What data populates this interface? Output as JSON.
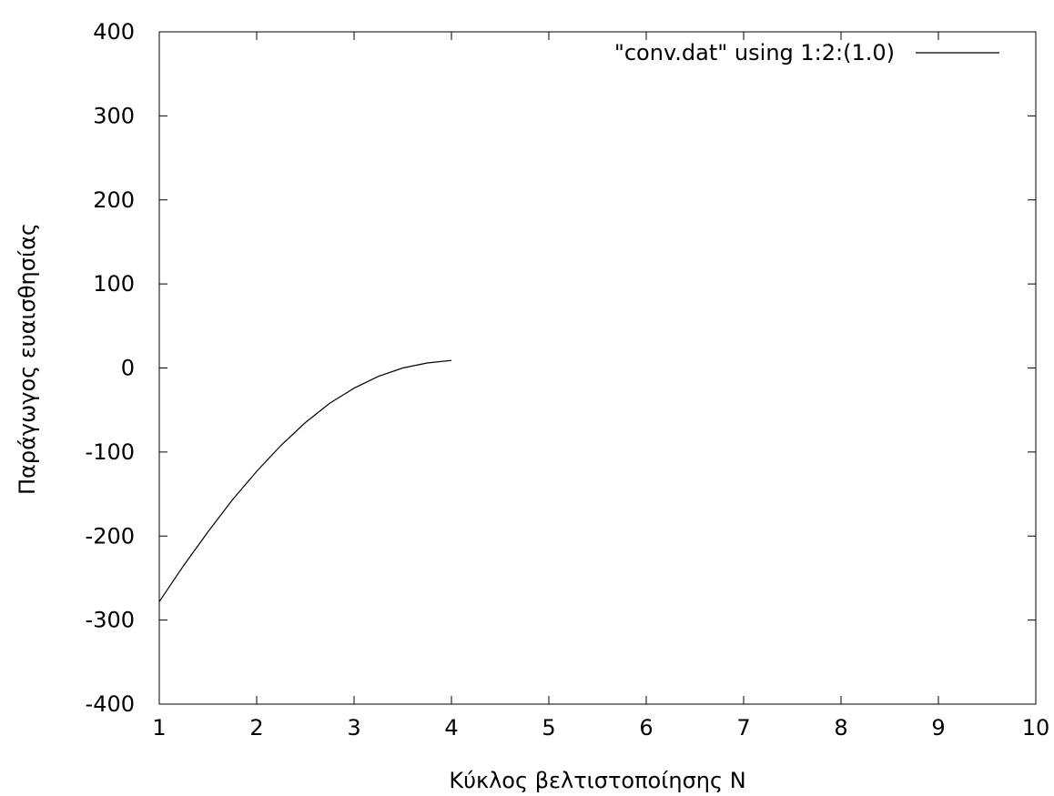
{
  "chart_data": {
    "type": "line",
    "title": "",
    "xlabel": "Κύκλος βελτιστοποίησης N",
    "ylabel": "Παράγωγος ευαισθησίας",
    "xlim": [
      1,
      10
    ],
    "ylim": [
      -400,
      400
    ],
    "xticks": [
      1,
      2,
      3,
      4,
      5,
      6,
      7,
      8,
      9,
      10
    ],
    "yticks": [
      -400,
      -300,
      -200,
      -100,
      0,
      100,
      200,
      300,
      400
    ],
    "x_tick_labels": [
      "1",
      "2",
      "3",
      "4",
      "5",
      "6",
      "7",
      "8",
      "9",
      "10"
    ],
    "y_tick_labels": [
      "-400",
      "-300",
      "-200",
      "-100",
      "0",
      "100",
      "200",
      "300",
      "400"
    ],
    "grid": false,
    "legend_position": "top-right",
    "series": [
      {
        "name": "\"conv.dat\" using 1:2:(1.0)",
        "color": "#000000",
        "x": [
          1.0,
          1.25,
          1.5,
          1.75,
          2.0,
          2.25,
          2.5,
          2.75,
          3.0,
          3.25,
          3.5,
          3.75,
          4.0
        ],
        "y": [
          -278,
          -235,
          -195,
          -157,
          -123,
          -92,
          -65,
          -42,
          -24,
          -10,
          0,
          6,
          9
        ]
      }
    ]
  }
}
